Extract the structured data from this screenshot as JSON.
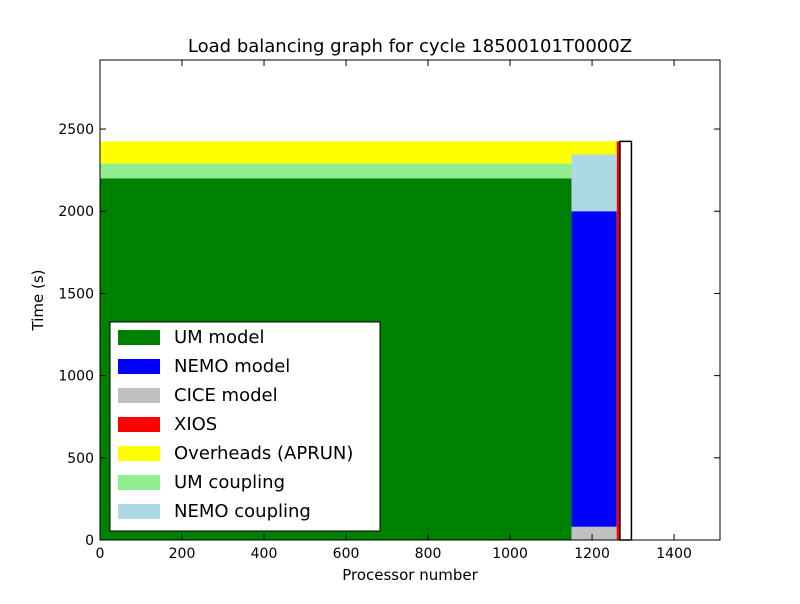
{
  "chart_data": {
    "type": "bar",
    "title": "Load balancing graph for cycle 18500101T0000Z",
    "xlabel": "Processor number",
    "ylabel": "Time (s)",
    "xlim": [
      0,
      1512
    ],
    "ylim": [
      0,
      2920
    ],
    "xticks": [
      0,
      200,
      400,
      600,
      800,
      1000,
      1200,
      1400
    ],
    "yticks": [
      0,
      500,
      1000,
      1500,
      2000,
      2500
    ],
    "grid": false,
    "legend_position": "lower-left",
    "series": [
      {
        "name": "UM model",
        "color": "#008000",
        "x_start": 0,
        "x_end": 1150,
        "y_start": 0,
        "y_end": 2200
      },
      {
        "name": "NEMO model",
        "color": "#0000ff",
        "x_start": 1150,
        "x_end": 1260,
        "y_start": 80,
        "y_end": 2000
      },
      {
        "name": "CICE model",
        "color": "#c0c0c0",
        "x_start": 1150,
        "x_end": 1260,
        "y_start": 0,
        "y_end": 80
      },
      {
        "name": "XIOS",
        "color": "#ff0000",
        "x_start": 1260,
        "x_end": 1268,
        "y_start": 0,
        "y_end": 2425
      },
      {
        "name": "Overheads (APRUN)",
        "color": "#ffff00",
        "x_start": 0,
        "x_end": 1260,
        "y_start": 2290,
        "y_end": 2425
      },
      {
        "name": "UM coupling",
        "color": "#90ee90",
        "x_start": 0,
        "x_end": 1150,
        "y_start": 2200,
        "y_end": 2290
      },
      {
        "name": "NEMO coupling",
        "color": "#add8e6",
        "x_start": 1150,
        "x_end": 1260,
        "y_start": 2000,
        "y_end": 2345
      }
    ],
    "outline_bar": {
      "x_start": 1268,
      "x_end": 1296,
      "y_start": 0,
      "y_end": 2425
    }
  }
}
